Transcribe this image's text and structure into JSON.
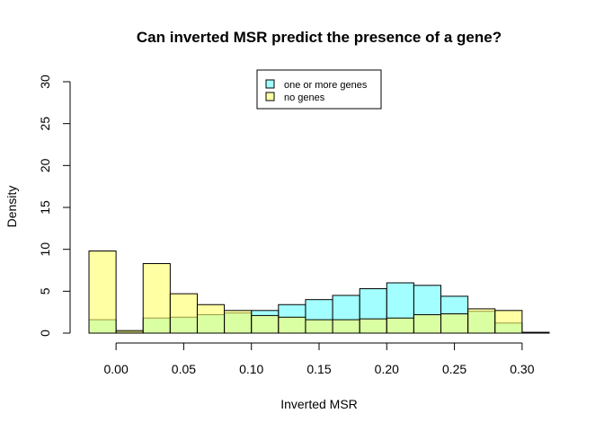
{
  "chart_data": {
    "type": "bar",
    "title": "Can inverted MSR predict the presence of a gene?",
    "xlabel": "Inverted MSR",
    "ylabel": "Density",
    "xlim": [
      -0.02,
      0.32
    ],
    "ylim": [
      0,
      30
    ],
    "x_ticks": [
      "0.00",
      "0.05",
      "0.10",
      "0.15",
      "0.20",
      "0.25",
      "0.30"
    ],
    "y_ticks": [
      "0",
      "5",
      "10",
      "15",
      "20",
      "25",
      "30"
    ],
    "bin_edges": [
      -0.02,
      0.0,
      0.02,
      0.04,
      0.06,
      0.08,
      0.1,
      0.12,
      0.14,
      0.16,
      0.18,
      0.2,
      0.22,
      0.24,
      0.26,
      0.28,
      0.3,
      0.32
    ],
    "series": [
      {
        "name": "one or more genes",
        "color": "#66ffff",
        "alpha": 0.6,
        "values": [
          1.6,
          0.15,
          1.8,
          1.9,
          2.2,
          2.4,
          2.7,
          3.4,
          4.0,
          4.5,
          5.3,
          6.0,
          5.7,
          4.4,
          2.6,
          1.2,
          0.1
        ]
      },
      {
        "name": "no genes",
        "color": "#ffff66",
        "alpha": 0.6,
        "values": [
          9.8,
          0.3,
          8.3,
          4.7,
          3.4,
          2.7,
          2.1,
          1.9,
          1.6,
          1.6,
          1.7,
          1.8,
          2.2,
          2.3,
          2.9,
          2.7,
          0.05
        ]
      }
    ],
    "overlap_color": "#b3ff80",
    "legend": {
      "position": "top",
      "entries": [
        "one or more genes",
        "no genes"
      ]
    },
    "grid": false
  }
}
